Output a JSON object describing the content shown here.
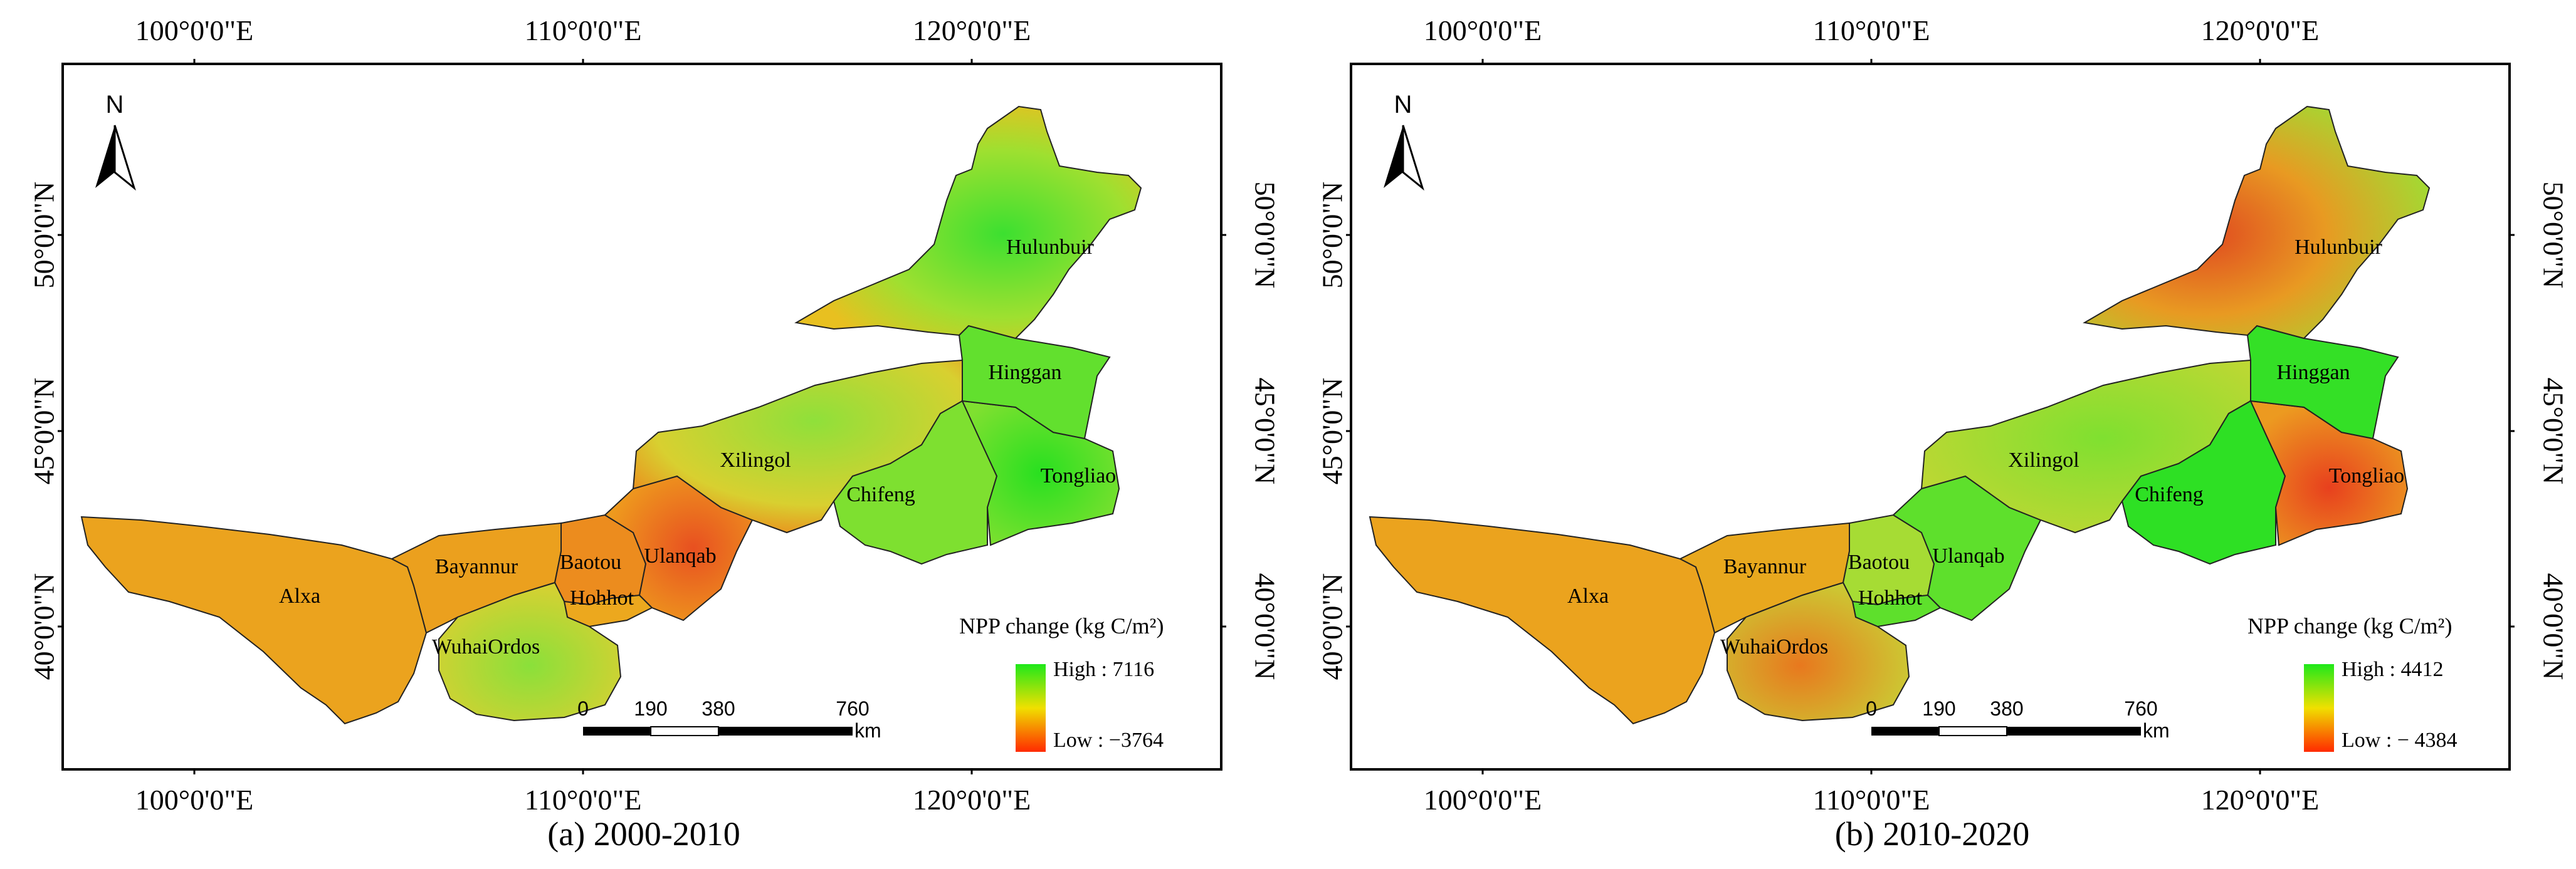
{
  "axes": {
    "top_ticks": [
      "100°0'0\"E",
      "110°0'0\"E",
      "120°0'0\"E"
    ],
    "bottom_ticks": [
      "100°0'0\"E",
      "110°0'0\"E",
      "120°0'0\"E"
    ],
    "left_ticks": [
      "50°0'0\"N",
      "45°0'0\"N",
      "40°0'0\"N"
    ],
    "right_ticks": [
      "50°0'0\"N",
      "45°0'0\"N",
      "40°0'0\"N"
    ]
  },
  "north_arrow_label": "N",
  "regions": [
    "Hulunbuir",
    "Hinggan",
    "Xilingol",
    "Tongliao",
    "Chifeng",
    "Ulanqab",
    "Baotou",
    "Hohhot",
    "Bayannur",
    "Alxa",
    "WuhaiOrdos"
  ],
  "legend": {
    "title": "NPP change (kg C/m²)"
  },
  "scale_bar": {
    "labels": [
      "0",
      "190",
      "380",
      "760"
    ],
    "unit": "km"
  },
  "panels": [
    {
      "caption": "(a) 2000-2010",
      "legend_high": "High : 7116",
      "legend_low": "Low : −3764",
      "high_color": "#1fe81a",
      "low_color": "#ff2a00"
    },
    {
      "caption": "(b) 2010-2020",
      "legend_high": "High : 4412",
      "legend_low": "Low : − 4384",
      "high_color": "#1fe81a",
      "low_color": "#ff2a00"
    }
  ]
}
